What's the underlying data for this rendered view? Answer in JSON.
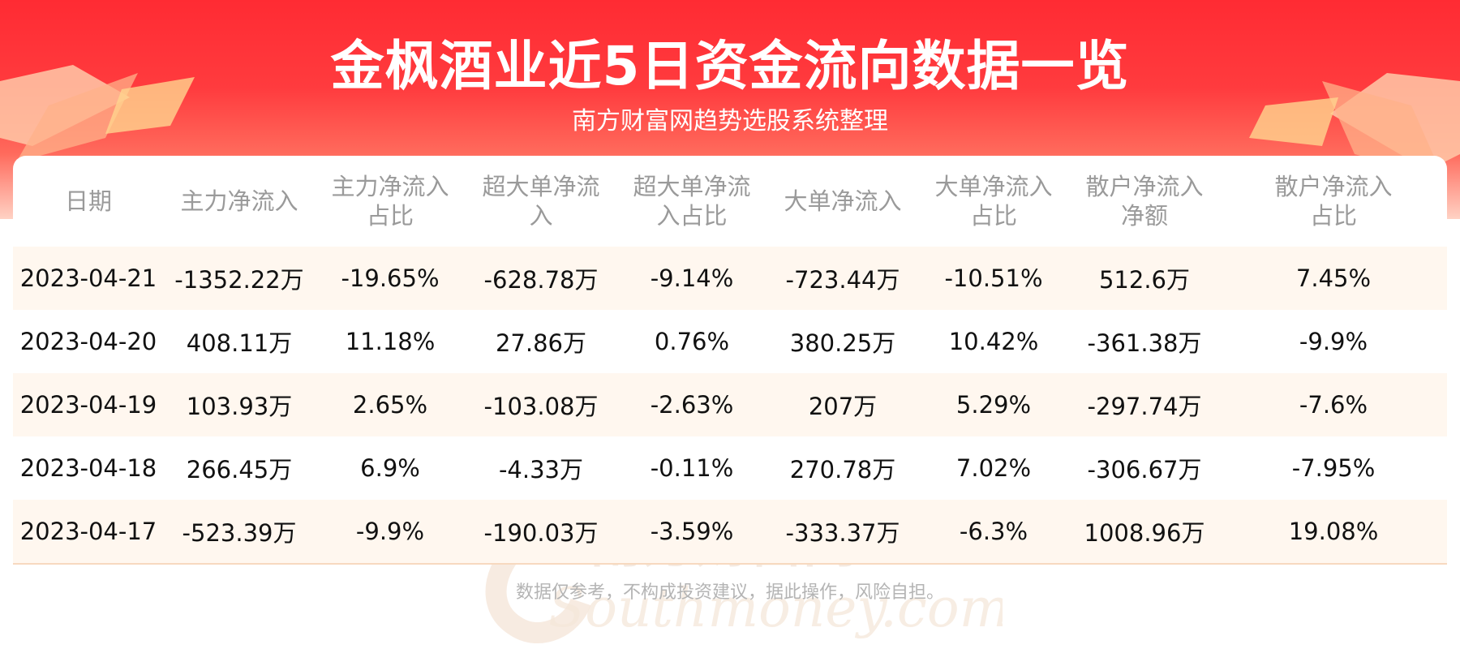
{
  "header": {
    "title": "金枫酒业近5日资金流向数据一览",
    "subtitle": "南方财富网趋势选股系统整理"
  },
  "table": {
    "columns": [
      {
        "line1": "日期",
        "line2": ""
      },
      {
        "line1": "主力净流入",
        "line2": ""
      },
      {
        "line1": "主力净流入",
        "line2": "占比"
      },
      {
        "line1": "超大单净流",
        "line2": "入"
      },
      {
        "line1": "超大单净流",
        "line2": "入占比"
      },
      {
        "line1": "大单净流入",
        "line2": ""
      },
      {
        "line1": "大单净流入",
        "line2": "占比"
      },
      {
        "line1": "散户净流入",
        "line2": "净额"
      },
      {
        "line1": "散户净流入",
        "line2": "占比"
      }
    ],
    "rows": [
      [
        "2023-04-21",
        "-1352.22万",
        "-19.65%",
        "-628.78万",
        "-9.14%",
        "-723.44万",
        "-10.51%",
        "512.6万",
        "7.45%"
      ],
      [
        "2023-04-20",
        "408.11万",
        "11.18%",
        "27.86万",
        "0.76%",
        "380.25万",
        "10.42%",
        "-361.38万",
        "-9.9%"
      ],
      [
        "2023-04-19",
        "103.93万",
        "2.65%",
        "-103.08万",
        "-2.63%",
        "207万",
        "5.29%",
        "-297.74万",
        "-7.6%"
      ],
      [
        "2023-04-18",
        "266.45万",
        "6.9%",
        "-4.33万",
        "-0.11%",
        "270.78万",
        "7.02%",
        "-306.67万",
        "-7.95%"
      ],
      [
        "2023-04-17",
        "-523.39万",
        "-9.9%",
        "-190.03万",
        "-3.59%",
        "-333.37万",
        "-6.3%",
        "1008.96万",
        "19.08%"
      ]
    ]
  },
  "watermark": {
    "cn": "南方财富网",
    "en": "Southmoney.com"
  },
  "footer": {
    "disclaimer": "数据仅参考，不构成投资建议，据此操作，风险自担。"
  },
  "colors": {
    "banner_red": "#ff2b33",
    "header_text": "#9a9a9a",
    "stripe": "#fff7ef",
    "footer_text": "#b4b4b4"
  }
}
